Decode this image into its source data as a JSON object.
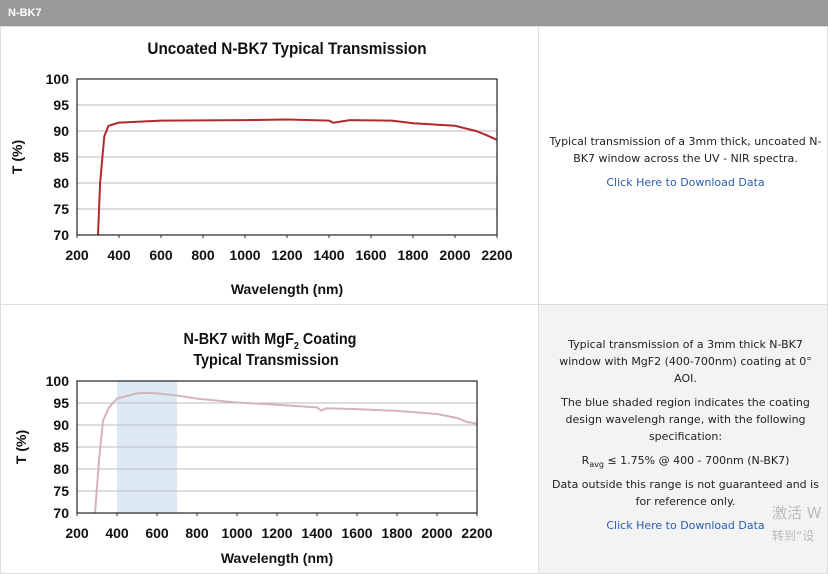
{
  "header": {
    "title": "N-BK7"
  },
  "rows": [
    {
      "chart": {
        "type": "line",
        "title": "Uncoated N-BK7 Typical Transmission",
        "xlabel": "Wavelength (nm)",
        "ylabel": "T (%)",
        "x": [
          300,
          310,
          330,
          350,
          400,
          600,
          1000,
          1200,
          1400,
          1420,
          1500,
          1700,
          1800,
          2000,
          2100,
          2150,
          2200
        ],
        "values": [
          70,
          80,
          89,
          91,
          91.6,
          92,
          92.1,
          92.2,
          92,
          91.6,
          92.1,
          92,
          91.5,
          91,
          90,
          89.2,
          88.3
        ],
        "color": "#b02a2a",
        "xlim": [
          200,
          2200
        ],
        "ylim": [
          70,
          100
        ],
        "xticks": [
          200,
          400,
          600,
          800,
          1000,
          1200,
          1400,
          1600,
          1800,
          2000,
          2200
        ],
        "yticks": [
          70,
          75,
          80,
          85,
          90,
          95,
          100
        ],
        "grid": true
      },
      "description": "Typical transmission of a 3mm thick, uncoated N-BK7 window across the UV - NIR spectra.",
      "link": "Click Here to Download Data"
    },
    {
      "chart": {
        "type": "line",
        "title": [
          "N-BK7 with MgF",
          "2",
          " Coating"
        ],
        "subtitle": "Typical Transmission",
        "xlabel": "Wavelength (nm)",
        "ylabel": "T (%)",
        "x": [
          290,
          310,
          330,
          360,
          400,
          500,
          550,
          600,
          700,
          800,
          1000,
          1200,
          1400,
          1420,
          1450,
          1600,
          1800,
          2000,
          2100,
          2150,
          2200
        ],
        "values": [
          70,
          82,
          91,
          94,
          96,
          97.2,
          97.3,
          97.2,
          96.7,
          96,
          95.1,
          94.6,
          94,
          93.3,
          93.8,
          93.6,
          93.2,
          92.5,
          91.6,
          90.7,
          90.3
        ],
        "color": "#d4b4bc",
        "shaded_region": [
          400,
          700
        ],
        "shaded_color": "#dce9f5",
        "xlim": [
          200,
          2200
        ],
        "ylim": [
          70,
          100
        ],
        "xticks": [
          200,
          400,
          600,
          800,
          1000,
          1200,
          1400,
          1600,
          1800,
          2000,
          2200
        ],
        "yticks": [
          70,
          75,
          80,
          85,
          90,
          95,
          100
        ],
        "grid": true
      },
      "description": "Typical transmission of a 3mm thick N-BK7 window with MgF2 (400-700nm) coating at 0° AOI.",
      "note": "The blue shaded region indicates the coating design wavelengh range, with the following specification:",
      "spec": [
        "R",
        "avg",
        " ≤ 1.75% @ 400 - 700nm (N-BK7)"
      ],
      "disclaimer": "Data outside this range is not guaranteed and is for reference only.",
      "link": "Click Here to Download Data"
    }
  ],
  "watermark": [
    "激活 W",
    "转到“设"
  ]
}
